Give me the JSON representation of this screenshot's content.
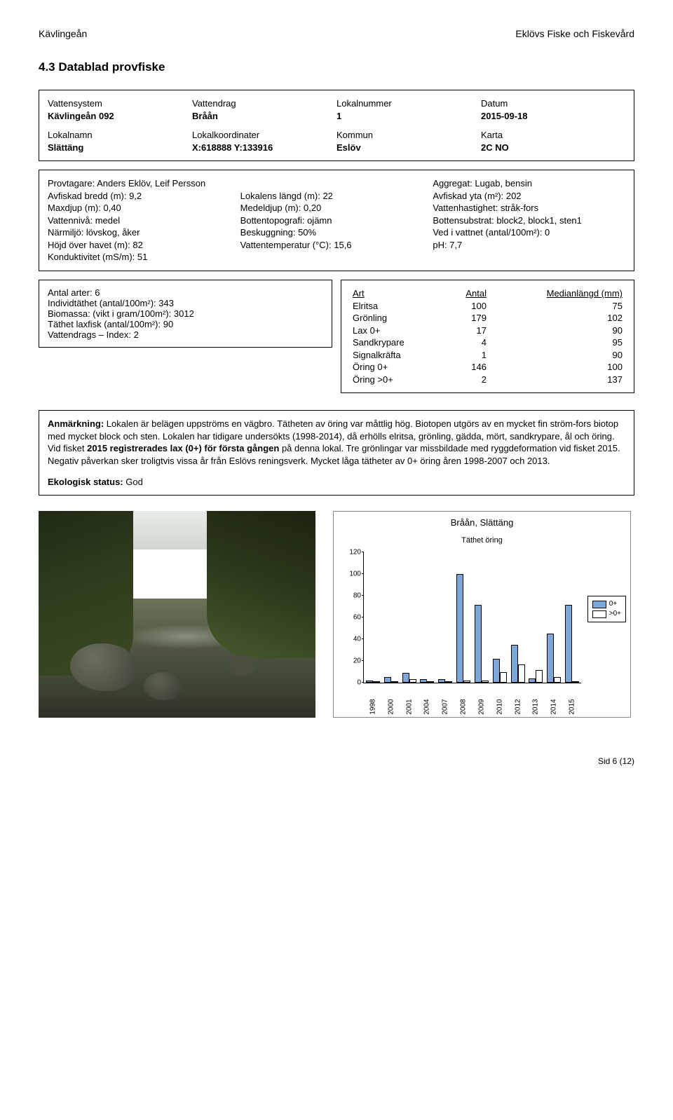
{
  "header": {
    "left": "Kävlingeån",
    "right": "Eklövs Fiske och Fiskevård"
  },
  "section_title": "4.3  Datablad provfiske",
  "box1": {
    "r1": {
      "a": "Vattensystem",
      "b": "Vattendrag",
      "c": "Lokalnummer",
      "d": "Datum"
    },
    "r2": {
      "a": "Kävlingeån 092",
      "b": "Bråån",
      "c": "1",
      "d": "2015-09-18"
    },
    "r3": {
      "a": "Lokalnamn",
      "b": "Lokalkoordinater",
      "c": "Kommun",
      "d": "Karta"
    },
    "r4": {
      "a": "Slättäng",
      "b": "X:618888 Y:133916",
      "c": "Eslöv",
      "d": "2C NO"
    }
  },
  "box2": {
    "r1": {
      "a": "Provtagare: Anders Eklöv, Leif Persson",
      "c": "Aggregat: Lugab, bensin"
    },
    "r2": {
      "a": "Avfiskad bredd (m): 9,2",
      "b": "Lokalens längd (m): 22",
      "c": "Avfiskad yta (m²): 202"
    },
    "r3": {
      "a": "Maxdjup (m): 0,40",
      "b": "Medeldjup (m): 0,20",
      "c": "Vattenhastighet: stråk-fors"
    },
    "r4": {
      "a": "Vattennivå: medel",
      "b": "Bottentopografi: ojämn",
      "c": "Bottensubstrat: block2, block1, sten1"
    },
    "r5": {
      "a": "Närmiljö: lövskog, åker",
      "b": "Beskuggning: 50%",
      "c": "Ved i vattnet (antal/100m²): 0"
    },
    "r6": {
      "a": "Höjd över havet (m): 82",
      "b": "Vattentemperatur (°C): 15,6",
      "c": "pH: 7,7"
    },
    "r7": {
      "a": "Konduktivitet (mS/m): 51"
    }
  },
  "box3": {
    "l1": "Antal arter: 6",
    "l2": "Individtäthet (antal/100m²): 343",
    "l3": "Biomassa: (vikt i gram/100m²): 3012",
    "l4": "Täthet laxfisk (antal/100m²): 90",
    "l5": "Vattendrags – Index: 2"
  },
  "species": {
    "headers": {
      "a": "Art",
      "b": "Antal",
      "c": "Medianlängd (mm)"
    },
    "rows": [
      {
        "a": "Elritsa",
        "b": "100",
        "c": "75"
      },
      {
        "a": "Grönling",
        "b": "179",
        "c": "102"
      },
      {
        "a": "Lax 0+",
        "b": "17",
        "c": "90"
      },
      {
        "a": "Sandkrypare",
        "b": "4",
        "c": "95"
      },
      {
        "a": "Signalkräfta",
        "b": "1",
        "c": "90"
      },
      {
        "a": "Öring 0+",
        "b": "146",
        "c": "100"
      },
      {
        "a": "Öring >0+",
        "b": "2",
        "c": "137"
      }
    ]
  },
  "remark": {
    "label": "Anmärkning:",
    "text": " Lokalen är belägen uppströms en vägbro. Tätheten av öring var måttlig hög. Biotopen utgörs av en mycket fin ström-fors biotop med mycket block och sten. Lokalen har tidigare undersökts (1998-2014), då erhölls elritsa, grönling, gädda, mört, sandkrypare, ål och öring. Vid fisket ",
    "bold2": "2015 registrerades lax (0+) för första gången",
    "text2": " på denna lokal. Tre grönlingar var missbildade med ryggdeformation vid fisket 2015. Negativ påverkan sker troligtvis vissa år från Eslövs reningsverk. Mycket låga tätheter av 0+ öring åren 1998-2007 och 2013.",
    "status_label": "Ekologisk status:",
    "status_val": " God"
  },
  "chart": {
    "title": "Bråån, Slättäng",
    "ylabel": "Täthet öring",
    "ymax": 120,
    "yticks": [
      0,
      20,
      40,
      60,
      80,
      100,
      120
    ],
    "years": [
      "1998",
      "2000",
      "2001",
      "2004",
      "2007",
      "2008",
      "2009",
      "2010",
      "2012",
      "2013",
      "2014",
      "2015"
    ],
    "series0_label": "0+",
    "series1_label": ">0+",
    "series0": [
      2,
      5,
      9,
      3,
      3,
      100,
      72,
      22,
      35,
      4,
      45,
      72
    ],
    "series1": [
      0,
      0,
      3,
      0,
      0,
      2,
      2,
      10,
      17,
      12,
      5,
      1
    ],
    "colors": {
      "s0": "#7da7d9",
      "s1": "#ffffff",
      "border": "#000000"
    }
  },
  "footer": "Sid 6 (12)"
}
